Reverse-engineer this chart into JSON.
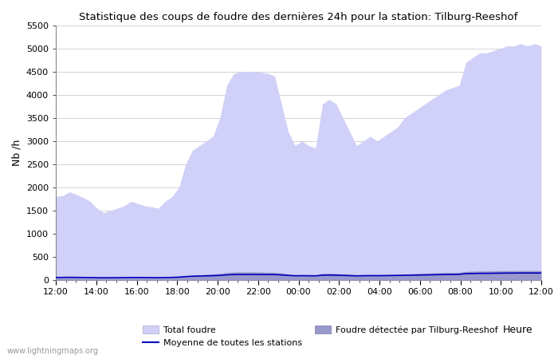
{
  "title": "Statistique des coups de foudre des dernières 24h pour la station: Tilburg-Reeshof",
  "xlabel": "Heure",
  "ylabel": "Nb /h",
  "xlim": [
    0,
    24
  ],
  "ylim": [
    0,
    5500
  ],
  "yticks": [
    0,
    500,
    1000,
    1500,
    2000,
    2500,
    3000,
    3500,
    4000,
    4500,
    5000,
    5500
  ],
  "xtick_labels": [
    "12:00",
    "14:00",
    "16:00",
    "18:00",
    "20:00",
    "22:00",
    "00:00",
    "02:00",
    "04:00",
    "06:00",
    "08:00",
    "10:00",
    "12:00"
  ],
  "xtick_positions": [
    0,
    2,
    4,
    6,
    8,
    10,
    12,
    14,
    16,
    18,
    20,
    22,
    24
  ],
  "color_total": "#d0d0f8",
  "color_local": "#9999cc",
  "color_line": "#0000bb",
  "background_color": "#ffffff",
  "plot_bg_color": "#ffffff",
  "watermark": "www.lightningmaps.org",
  "legend_total": "Total foudre",
  "legend_local": "Foudre détectée par Tilburg-Reeshof",
  "legend_line": "Moyenne de toutes les stations",
  "total_foudre": [
    1800,
    1820,
    1900,
    1850,
    1780,
    1700,
    1550,
    1450,
    1500,
    1550,
    1600,
    1700,
    1650,
    1600,
    1580,
    1550,
    1700,
    1800,
    2000,
    2500,
    2800,
    2900,
    3000,
    3100,
    3500,
    4200,
    4450,
    4500,
    4500,
    4500,
    4480,
    4460,
    4400,
    3800,
    3200,
    2900,
    3000,
    2900,
    2850,
    3800,
    3900,
    3800,
    3500,
    3200,
    2900,
    3000,
    3100,
    3000,
    3100,
    3200,
    3300,
    3500,
    3600,
    3700,
    3800,
    3900,
    4000,
    4100,
    4150,
    4200,
    4700,
    4800,
    4900,
    4900,
    4950,
    5000,
    5050,
    5050,
    5100,
    5050,
    5100,
    5050
  ],
  "local_foudre": [
    50,
    50,
    55,
    52,
    50,
    48,
    45,
    42,
    44,
    46,
    48,
    50,
    52,
    50,
    48,
    46,
    50,
    55,
    65,
    85,
    100,
    110,
    120,
    130,
    140,
    160,
    170,
    175,
    175,
    175,
    172,
    168,
    165,
    150,
    130,
    110,
    115,
    110,
    105,
    140,
    145,
    140,
    130,
    120,
    110,
    115,
    118,
    115,
    118,
    122,
    125,
    130,
    135,
    140,
    145,
    150,
    155,
    160,
    162,
    165,
    185,
    190,
    195,
    195,
    197,
    200,
    202,
    202,
    205,
    203,
    205,
    203
  ],
  "mean_line": [
    55,
    56,
    58,
    57,
    55,
    53,
    51,
    49,
    50,
    51,
    52,
    54,
    55,
    53,
    52,
    51,
    53,
    56,
    62,
    74,
    82,
    86,
    90,
    94,
    100,
    112,
    118,
    120,
    120,
    120,
    119,
    118,
    117,
    110,
    100,
    92,
    94,
    92,
    90,
    105,
    107,
    105,
    100,
    95,
    90,
    93,
    95,
    93,
    95,
    97,
    99,
    102,
    105,
    107,
    110,
    113,
    116,
    119,
    121,
    123,
    138,
    141,
    144,
    144,
    146,
    148,
    150,
    150,
    152,
    151,
    152,
    151
  ]
}
